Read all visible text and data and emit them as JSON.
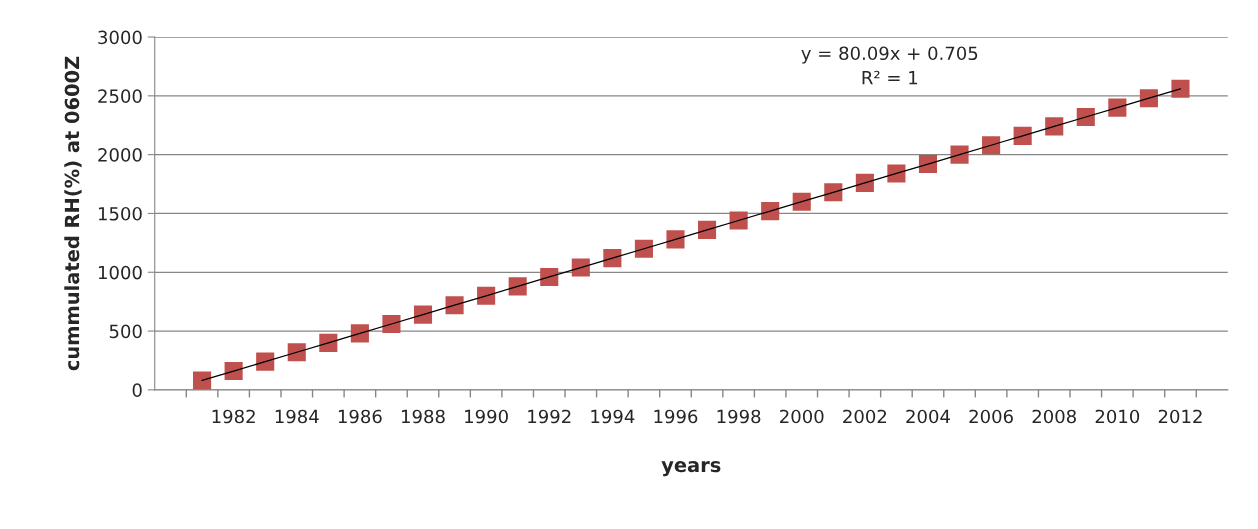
{
  "chart_data": {
    "type": "scatter",
    "xlabel": "years",
    "ylabel": "cummulated RH(%) at 0600Z",
    "categories": [
      null,
      "1982",
      null,
      "1984",
      null,
      "1986",
      null,
      "1988",
      null,
      "1990",
      null,
      "1992",
      null,
      "1994",
      null,
      "1996",
      null,
      "1998",
      null,
      "2000",
      null,
      "2002",
      null,
      "2004",
      null,
      "2006",
      null,
      "2008",
      null,
      "2010",
      null,
      "2012"
    ],
    "series": [
      {
        "color": "#c0504d",
        "marker": "square",
        "values": [
          80,
          160,
          240,
          320,
          400,
          480,
          560,
          640,
          720,
          800,
          880,
          960,
          1040,
          1120,
          1200,
          1280,
          1360,
          1440,
          1520,
          1600,
          1680,
          1760,
          1840,
          1920,
          2000,
          2080,
          2160,
          2240,
          2320,
          2400,
          2480,
          2560
        ]
      },
      {
        "type": "line",
        "color": "#000000",
        "marker": "none",
        "line_style": "solid",
        "values": [
          80,
          160,
          240,
          320,
          400,
          480,
          560,
          640,
          720,
          800,
          880,
          960,
          1040,
          1120,
          1200,
          1280,
          1360,
          1440,
          1520,
          1600,
          1680,
          1760,
          1840,
          1920,
          2000,
          2080,
          2160,
          2240,
          2320,
          2400,
          2480,
          2560
        ]
      }
    ],
    "ylim": [
      0,
      3000
    ],
    "yticks": [
      0,
      500,
      1000,
      1500,
      2000,
      2500,
      3000
    ],
    "grid": "y",
    "legend": false,
    "annotations": [
      "y = 80.09x + 0.705\nR² = 1"
    ]
  }
}
